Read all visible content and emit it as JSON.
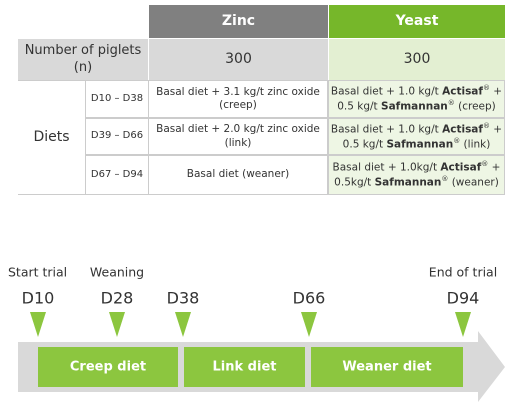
{
  "table": {
    "columns": [
      "Zinc",
      "Yeast"
    ],
    "piglets": {
      "label": "Number of piglets (n)",
      "values": [
        "300",
        "300"
      ]
    },
    "diets": {
      "label": "Diets",
      "rows": [
        {
          "period": "D10 – D38",
          "cells": [
            {
              "lines": [
                [
                  {
                    "text": "Basal diet + 3.1 kg/t zinc oxide"
                  }
                ],
                [
                  {
                    "text": "(creep)"
                  }
                ]
              ]
            },
            {
              "lines": [
                [
                  {
                    "text": "Basal diet + 1.0 kg/t "
                  },
                  {
                    "text": "Actisaf",
                    "bold": true
                  },
                  {
                    "text": "®",
                    "sup": true
                  },
                  {
                    "text": " +"
                  }
                ],
                [
                  {
                    "text": "0.5 kg/t "
                  },
                  {
                    "text": "Safmannan",
                    "bold": true
                  },
                  {
                    "text": "®",
                    "sup": true
                  },
                  {
                    "text": " (creep)"
                  }
                ]
              ]
            }
          ]
        },
        {
          "period": "D39 – D66",
          "cells": [
            {
              "lines": [
                [
                  {
                    "text": "Basal diet + 2.0 kg/t zinc oxide"
                  }
                ],
                [
                  {
                    "text": "(link)"
                  }
                ]
              ]
            },
            {
              "lines": [
                [
                  {
                    "text": "Basal diet + 1.0 kg/t "
                  },
                  {
                    "text": "Actisaf",
                    "bold": true
                  },
                  {
                    "text": "®",
                    "sup": true
                  },
                  {
                    "text": " +"
                  }
                ],
                [
                  {
                    "text": "0.5 kg/t "
                  },
                  {
                    "text": "Safmannan",
                    "bold": true
                  },
                  {
                    "text": "®",
                    "sup": true
                  },
                  {
                    "text": " (link)"
                  }
                ]
              ]
            }
          ]
        },
        {
          "period": "D67 – D94",
          "cells": [
            {
              "lines": [
                [
                  {
                    "text": "Basal diet (weaner)"
                  }
                ]
              ]
            },
            {
              "lines": [
                [
                  {
                    "text": "Basal diet + 1.0kg/t "
                  },
                  {
                    "text": "Actisaf",
                    "bold": true
                  },
                  {
                    "text": "®",
                    "sup": true
                  },
                  {
                    "text": " +"
                  }
                ],
                [
                  {
                    "text": "0.5kg/t "
                  },
                  {
                    "text": "Safmannan",
                    "bold": true
                  },
                  {
                    "text": "®",
                    "sup": true
                  },
                  {
                    "text": " (weaner)"
                  }
                ]
              ]
            }
          ]
        }
      ]
    }
  },
  "timeline": {
    "events": [
      {
        "label": "Start trial",
        "day": "D10"
      },
      {
        "label": "Weaning",
        "day": "D28"
      },
      {
        "day": "D38"
      },
      {
        "day": "D66"
      },
      {
        "label": "End of trial",
        "day": "D94"
      }
    ],
    "phases": [
      "Creep diet",
      "Link diet",
      "Weaner diet"
    ]
  }
}
